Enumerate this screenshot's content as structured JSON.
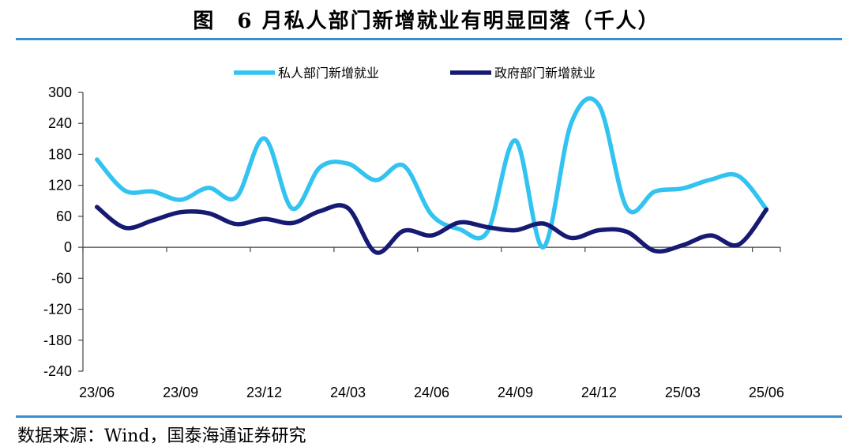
{
  "title": "图　6 月私人部门新增就业有明显回落（千人）",
  "source": "数据来源：Wind，国泰海通证券研究",
  "colors": {
    "rule": "#3a8fd0",
    "axis": "#444444"
  },
  "chart_data": {
    "type": "line",
    "title": "图　6 月私人部门新增就业有明显回落（千人）",
    "xlabel": "",
    "ylabel": "",
    "ylim": [
      -240,
      300
    ],
    "yticks": [
      300,
      240,
      180,
      120,
      60,
      0,
      -60,
      -120,
      -180,
      -240
    ],
    "x": [
      "23/06",
      "23/07",
      "23/08",
      "23/09",
      "23/10",
      "23/11",
      "23/12",
      "24/01",
      "24/02",
      "24/03",
      "24/04",
      "24/05",
      "24/06",
      "24/07",
      "24/08",
      "24/09",
      "24/10",
      "24/11",
      "24/12",
      "25/01",
      "25/02",
      "25/03",
      "25/04",
      "25/05",
      "25/06"
    ],
    "xtick_labels": [
      "23/06",
      "23/09",
      "23/12",
      "24/03",
      "24/06",
      "24/09",
      "24/12",
      "25/03",
      "25/06"
    ],
    "legend_position": "top-center",
    "grid": false,
    "series": [
      {
        "name": "私人部门新增就业",
        "color": "#33c3f0",
        "values": [
          170,
          110,
          108,
          92,
          115,
          97,
          211,
          75,
          155,
          162,
          130,
          158,
          63,
          35,
          30,
          207,
          0,
          240,
          275,
          76,
          108,
          114,
          131,
          138,
          74
        ]
      },
      {
        "name": "政府部门新增就业",
        "color": "#161a72",
        "values": [
          78,
          38,
          52,
          68,
          66,
          45,
          55,
          47,
          70,
          76,
          -10,
          32,
          23,
          48,
          39,
          33,
          46,
          18,
          33,
          30,
          -7,
          4,
          23,
          5,
          73
        ]
      }
    ]
  }
}
